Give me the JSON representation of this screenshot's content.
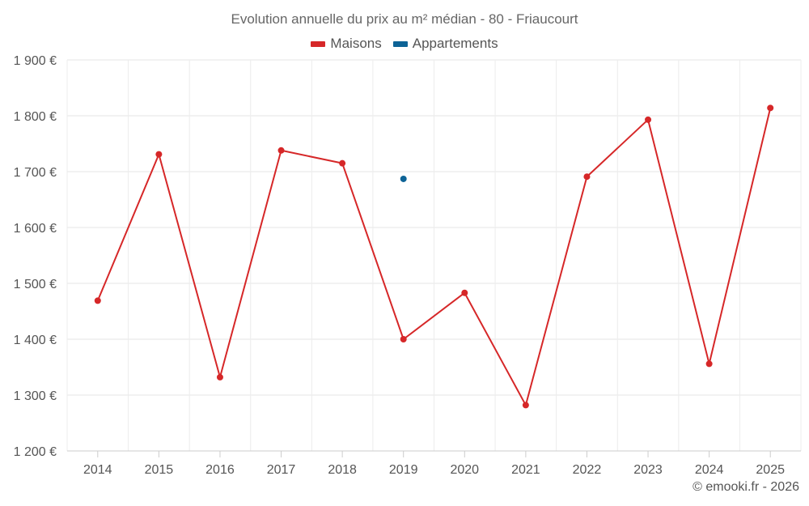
{
  "chart_data": {
    "type": "line",
    "title": "Evolution annuelle du prix au m² médian - 80 - Friaucourt",
    "xlabel": "",
    "ylabel": "",
    "x": [
      "2014",
      "2015",
      "2016",
      "2017",
      "2018",
      "2019",
      "2020",
      "2021",
      "2022",
      "2023",
      "2024",
      "2025"
    ],
    "ylim": [
      1200,
      1900
    ],
    "yticks": [
      1200,
      1300,
      1400,
      1500,
      1600,
      1700,
      1800,
      1900
    ],
    "ytick_labels": [
      "1 200 €",
      "1 300 €",
      "1 400 €",
      "1 500 €",
      "1 600 €",
      "1 700 €",
      "1 800 €",
      "1 900 €"
    ],
    "grid": true,
    "legend_position": "top-center",
    "series": [
      {
        "name": "Maisons",
        "color": "#d62728",
        "values": [
          1469,
          1731,
          1332,
          1738,
          1715,
          1400,
          1483,
          1282,
          1691,
          1793,
          1356,
          1814
        ]
      },
      {
        "name": "Appartements",
        "color": "#0d6396",
        "values": [
          null,
          null,
          null,
          null,
          null,
          1687,
          null,
          null,
          null,
          null,
          null,
          null
        ]
      }
    ]
  },
  "credit": "© emooki.fr - 2026"
}
